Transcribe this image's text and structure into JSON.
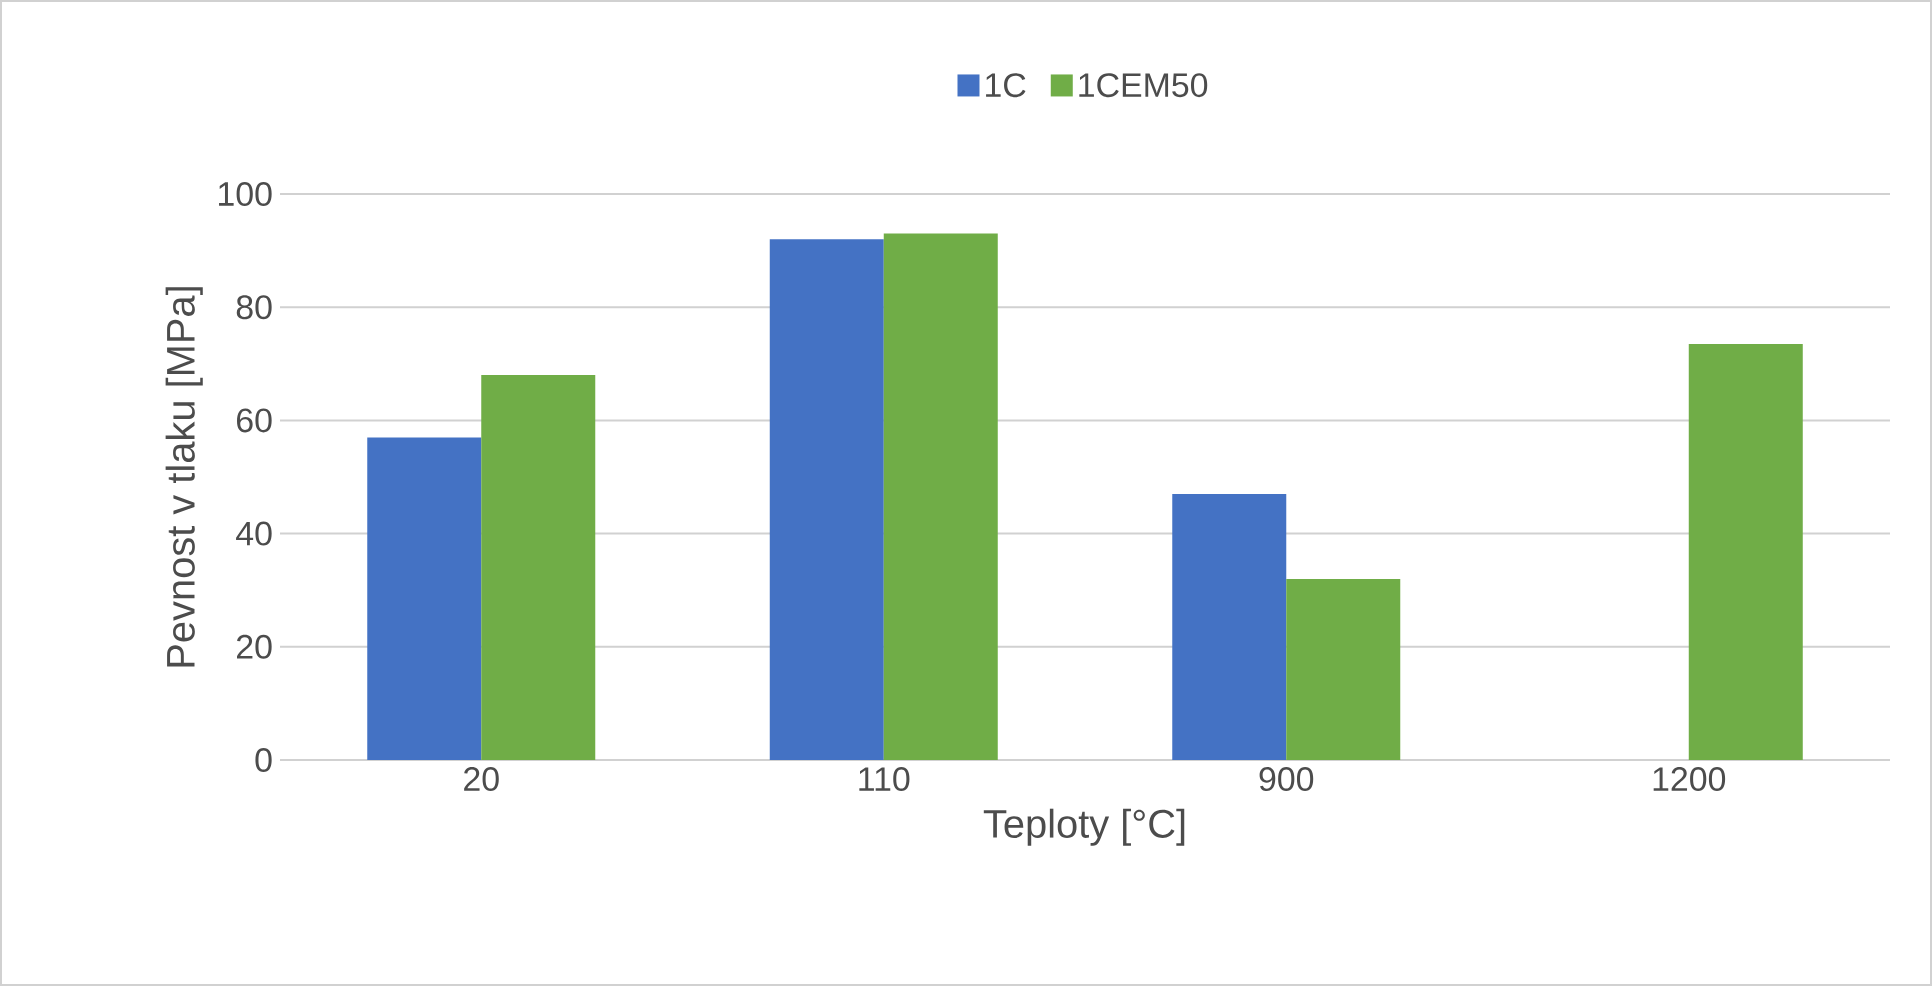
{
  "chart_data": {
    "type": "bar",
    "xlabel": "Teploty [°C]",
    "ylabel": "Pevnost v tlaku [MPa]",
    "categories": [
      "20",
      "110",
      "900",
      "1200"
    ],
    "series": [
      {
        "name": "1C",
        "color": "#4472c4",
        "values": [
          57,
          92,
          47,
          null
        ]
      },
      {
        "name": "1CEM50",
        "color": "#70ad47",
        "values": [
          68,
          93,
          32,
          73.5
        ]
      }
    ],
    "ylim": [
      0,
      100
    ],
    "yticks": [
      0,
      20,
      40,
      60,
      80,
      100
    ],
    "grid": "y",
    "legend": "top"
  }
}
